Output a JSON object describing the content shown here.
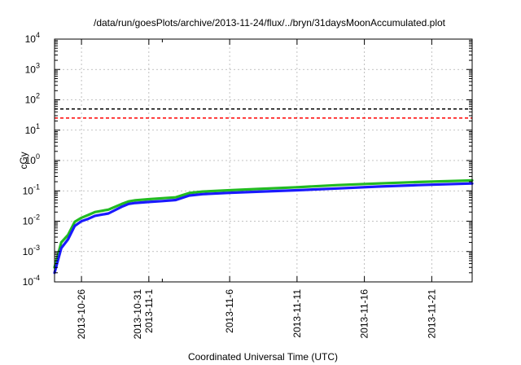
{
  "chart_data": {
    "type": "line",
    "title": "/data/run/goesPlots/archive/2013-11-24/flux/../bryn/31daysMoonAccumulated.plot",
    "xlabel": "Coordinated Universal Time (UTC)",
    "ylabel": "cGy",
    "y_scale": "log",
    "ylim": [
      0.0001,
      10000
    ],
    "xlim": [
      "2013-10-24",
      "2013-11-24"
    ],
    "grid": true,
    "y_ticks": [
      {
        "value": 0.0001,
        "base": "10",
        "exp": "-4"
      },
      {
        "value": 0.001,
        "base": "10",
        "exp": "-3"
      },
      {
        "value": 0.01,
        "base": "10",
        "exp": "-2"
      },
      {
        "value": 0.1,
        "base": "10",
        "exp": "-1"
      },
      {
        "value": 1,
        "base": "10",
        "exp": "0"
      },
      {
        "value": 10,
        "base": "10",
        "exp": "1"
      },
      {
        "value": 100,
        "base": "10",
        "exp": "2"
      },
      {
        "value": 1000,
        "base": "10",
        "exp": "3"
      },
      {
        "value": 10000,
        "base": "10",
        "exp": "4"
      }
    ],
    "x_ticks": [
      {
        "date": "2013-10-26",
        "lines": [
          "2013-10-26"
        ]
      },
      {
        "date": "2013-10-31",
        "lines": [
          "2013-10-31",
          "2013-11-1"
        ]
      },
      {
        "date": "2013-11-06",
        "lines": [
          "2013-11-6"
        ]
      },
      {
        "date": "2013-11-11",
        "lines": [
          "2013-11-11"
        ]
      },
      {
        "date": "2013-11-16",
        "lines": [
          "2013-11-16"
        ]
      },
      {
        "date": "2013-11-21",
        "lines": [
          "2013-11-21"
        ]
      }
    ],
    "x_minor_ticks": [
      "2013-11-01"
    ],
    "reference_lines": [
      {
        "value": 50,
        "color": "#000000",
        "style": "dashed"
      },
      {
        "value": 25,
        "color": "#ff0000",
        "style": "dashed"
      }
    ],
    "series": [
      {
        "color": "#22bb22",
        "x": [
          "2013-10-24",
          "2013-10-24T12:00",
          "2013-10-25",
          "2013-10-25T12:00",
          "2013-10-26",
          "2013-10-26T12:00",
          "2013-10-27",
          "2013-10-28",
          "2013-10-29",
          "2013-10-29T12:00",
          "2013-10-30",
          "2013-10-31",
          "2013-11-01",
          "2013-11-02",
          "2013-11-03",
          "2013-11-04",
          "2013-11-06",
          "2013-11-08",
          "2013-11-11",
          "2013-11-14",
          "2013-11-17",
          "2013-11-20",
          "2013-11-24"
        ],
        "y": [
          0.0003,
          0.002,
          0.0035,
          0.0095,
          0.013,
          0.016,
          0.02,
          0.024,
          0.037,
          0.045,
          0.049,
          0.053,
          0.057,
          0.061,
          0.085,
          0.095,
          0.105,
          0.115,
          0.132,
          0.155,
          0.175,
          0.195,
          0.22
        ]
      },
      {
        "color": "#1a1aff",
        "x": [
          "2013-10-24",
          "2013-10-24T12:00",
          "2013-10-25",
          "2013-10-25T12:00",
          "2013-10-26",
          "2013-10-26T12:00",
          "2013-10-27",
          "2013-10-28",
          "2013-10-29",
          "2013-10-29T12:00",
          "2013-10-30",
          "2013-10-31",
          "2013-11-01",
          "2013-11-02",
          "2013-11-03",
          "2013-11-04",
          "2013-11-06",
          "2013-11-08",
          "2013-11-11",
          "2013-11-14",
          "2013-11-17",
          "2013-11-20",
          "2013-11-24"
        ],
        "y": [
          0.0002,
          0.0013,
          0.0025,
          0.007,
          0.01,
          0.012,
          0.015,
          0.018,
          0.03,
          0.037,
          0.04,
          0.043,
          0.046,
          0.05,
          0.07,
          0.078,
          0.086,
          0.093,
          0.105,
          0.12,
          0.138,
          0.155,
          0.175
        ]
      }
    ]
  }
}
